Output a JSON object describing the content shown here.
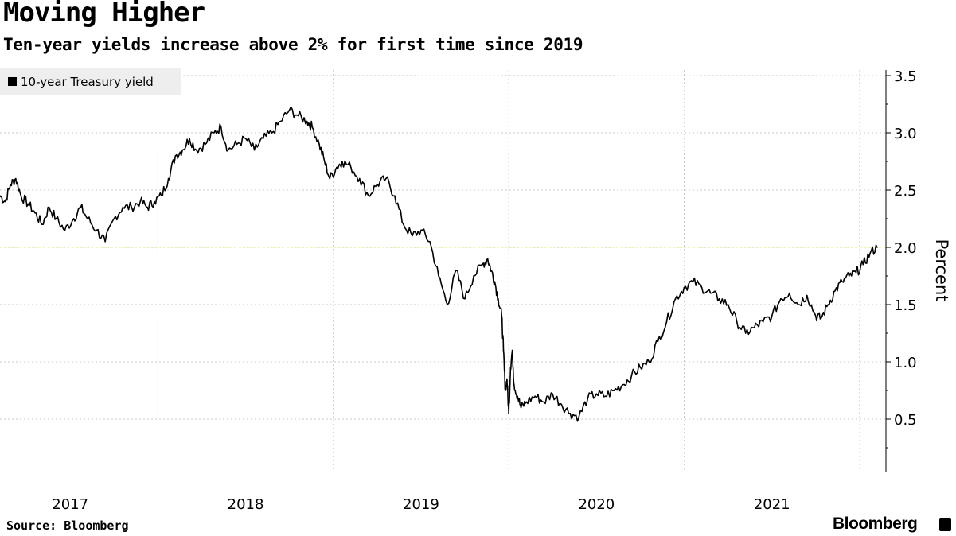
{
  "title": "Moving Higher",
  "subtitle": "Ten-year yields increase above 2% for first time since 2019",
  "source": "Source: Bloomberg",
  "brand": "Bloomberg",
  "colors": {
    "line": "#000000",
    "grid": "#c8c8c8",
    "highlight": "#f2f2a0",
    "legend_bg": "#eeeeee"
  },
  "chart_data": {
    "type": "line",
    "title": "Moving Higher",
    "subtitle": "Ten-year yields increase above 2% for first time since 2019",
    "ylabel": "Percent",
    "xlabel": "",
    "ylim": [
      0,
      3.5
    ],
    "xlim": [
      2017.0,
      2022.05
    ],
    "yticks": [
      {
        "value": 0.5,
        "label": "0.5"
      },
      {
        "value": 1.0,
        "label": "1.0"
      },
      {
        "value": 1.5,
        "label": "1.5"
      },
      {
        "value": 2.0,
        "label": "2.0"
      },
      {
        "value": 2.5,
        "label": "2.5"
      },
      {
        "value": 3.0,
        "label": "3.0"
      },
      {
        "value": 3.5,
        "label": "3.5"
      }
    ],
    "xticks": [
      {
        "value": 2017.4,
        "label": "2017"
      },
      {
        "value": 2018.4,
        "label": "2018"
      },
      {
        "value": 2019.4,
        "label": "2019"
      },
      {
        "value": 2020.4,
        "label": "2020"
      },
      {
        "value": 2021.4,
        "label": "2021"
      }
    ],
    "year_gridlines": [
      2017.9,
      2018.9,
      2019.9,
      2020.9,
      2021.9
    ],
    "reference_line": 2.0,
    "legend": "top-left",
    "series": [
      {
        "name": "10-year Treasury yield",
        "x": [
          2017.0,
          2017.03,
          2017.06,
          2017.09,
          2017.12,
          2017.16,
          2017.2,
          2017.24,
          2017.28,
          2017.32,
          2017.37,
          2017.42,
          2017.46,
          2017.5,
          2017.55,
          2017.6,
          2017.65,
          2017.7,
          2017.75,
          2017.8,
          2017.84,
          2017.88,
          2017.92,
          2017.96,
          2018.0,
          2018.04,
          2018.08,
          2018.12,
          2018.17,
          2018.22,
          2018.26,
          2018.3,
          2018.35,
          2018.4,
          2018.45,
          2018.5,
          2018.55,
          2018.6,
          2018.65,
          2018.7,
          2018.75,
          2018.78,
          2018.82,
          2018.85,
          2018.88,
          2018.92,
          2018.95,
          2019.0,
          2019.05,
          2019.1,
          2019.15,
          2019.2,
          2019.25,
          2019.3,
          2019.35,
          2019.4,
          2019.45,
          2019.5,
          2019.55,
          2019.6,
          2019.65,
          2019.7,
          2019.75,
          2019.78,
          2019.8,
          2019.82,
          2019.84,
          2019.86,
          2019.87,
          2019.88,
          2019.89,
          2019.9,
          2019.91,
          2019.92,
          2019.93,
          2019.95,
          2019.97,
          2020.0,
          2020.05,
          2020.1,
          2020.15,
          2020.2,
          2020.25,
          2020.3,
          2020.35,
          2020.4,
          2020.45,
          2020.5,
          2020.55,
          2020.6,
          2020.65,
          2020.7,
          2020.75,
          2020.8,
          2020.85,
          2020.9,
          2020.95,
          2021.0,
          2021.05,
          2021.1,
          2021.15,
          2021.2,
          2021.25,
          2021.3,
          2021.35,
          2021.4,
          2021.45,
          2021.5,
          2021.55,
          2021.6,
          2021.65,
          2021.68,
          2021.72,
          2021.76,
          2021.8,
          2021.84,
          2021.88,
          2021.92,
          2021.96,
          2022.0
        ],
        "values": [
          2.45,
          2.4,
          2.55,
          2.6,
          2.45,
          2.38,
          2.3,
          2.2,
          2.35,
          2.25,
          2.15,
          2.25,
          2.35,
          2.25,
          2.15,
          2.05,
          2.25,
          2.35,
          2.35,
          2.4,
          2.35,
          2.4,
          2.45,
          2.6,
          2.8,
          2.85,
          2.95,
          2.85,
          2.9,
          3.0,
          3.05,
          2.85,
          2.9,
          2.95,
          2.85,
          2.95,
          3.0,
          3.1,
          3.2,
          3.15,
          3.1,
          3.05,
          2.9,
          2.75,
          2.6,
          2.7,
          2.75,
          2.7,
          2.6,
          2.45,
          2.55,
          2.6,
          2.45,
          2.2,
          2.1,
          2.15,
          2.05,
          1.75,
          1.5,
          1.8,
          1.55,
          1.75,
          1.85,
          1.9,
          1.8,
          1.7,
          1.55,
          1.4,
          1.1,
          0.75,
          0.85,
          0.55,
          0.95,
          1.1,
          0.8,
          0.7,
          0.6,
          0.65,
          0.7,
          0.65,
          0.72,
          0.63,
          0.55,
          0.52,
          0.68,
          0.72,
          0.7,
          0.75,
          0.8,
          0.88,
          0.95,
          1.0,
          1.18,
          1.35,
          1.55,
          1.65,
          1.7,
          1.65,
          1.6,
          1.55,
          1.5,
          1.35,
          1.25,
          1.3,
          1.35,
          1.4,
          1.55,
          1.6,
          1.5,
          1.58,
          1.4,
          1.38,
          1.5,
          1.62,
          1.7,
          1.75,
          1.78,
          1.85,
          1.95,
          2.0
        ]
      }
    ]
  }
}
